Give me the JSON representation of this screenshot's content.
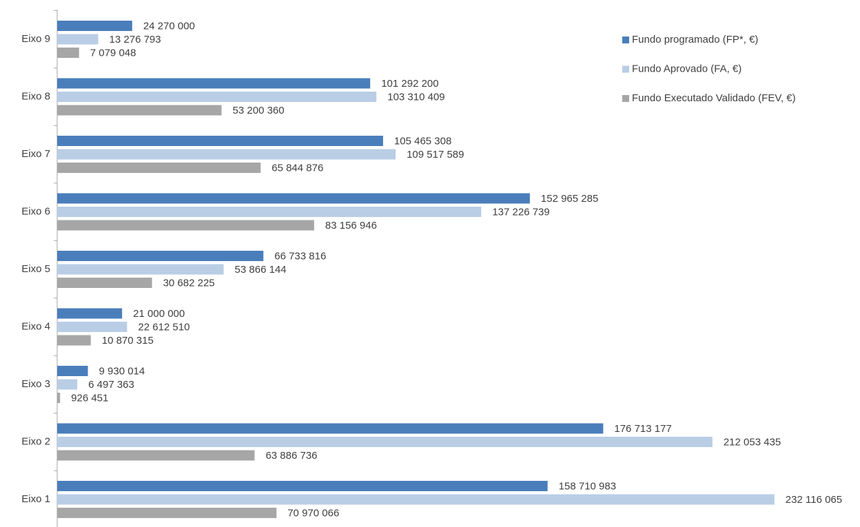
{
  "chart_data": {
    "type": "bar",
    "orientation": "horizontal",
    "categories": [
      "Eixo 1",
      "Eixo 2",
      "Eixo 3",
      "Eixo 4",
      "Eixo 5",
      "Eixo 6",
      "Eixo 7",
      "Eixo 8",
      "Eixo 9"
    ],
    "xlim": [
      0,
      250000000
    ],
    "legend": "top-right",
    "series": [
      {
        "name": "Fundo programado (FP*, €)",
        "color": "#4a7ebb",
        "values": [
          158710983,
          176713177,
          9930014,
          21000000,
          66733816,
          152965285,
          105465308,
          101292200,
          24270000
        ],
        "value_labels": [
          "158 710 983",
          "176 713 177",
          "9 930 014",
          "21 000 000",
          "66 733 816",
          "152 965 285",
          "105 465 308",
          "101 292 200",
          "24 270 000"
        ]
      },
      {
        "name": "Fundo Aprovado (FA, €)",
        "color": "#b9cde5",
        "values": [
          232116065,
          212053435,
          6497363,
          22612510,
          53866144,
          137226739,
          109517589,
          103310409,
          13276793
        ],
        "value_labels": [
          "232 116 065",
          "212 053 435",
          "6 497 363",
          "22 612 510",
          "53 866 144",
          "137 226 739",
          "109 517 589",
          "103 310 409",
          "13 276 793"
        ]
      },
      {
        "name": "Fundo Executado Validado (FEV, €)",
        "color": "#a6a6a6",
        "values": [
          70970066,
          63886736,
          926451,
          10870315,
          30682225,
          83156946,
          65844876,
          53200360,
          7079048
        ],
        "value_labels": [
          "70 970 066",
          "63 886 736",
          "926 451",
          "10 870 315",
          "30 682 225",
          "83 156 946",
          "65 844 876",
          "53 200 360",
          "7 079 048"
        ]
      }
    ]
  }
}
